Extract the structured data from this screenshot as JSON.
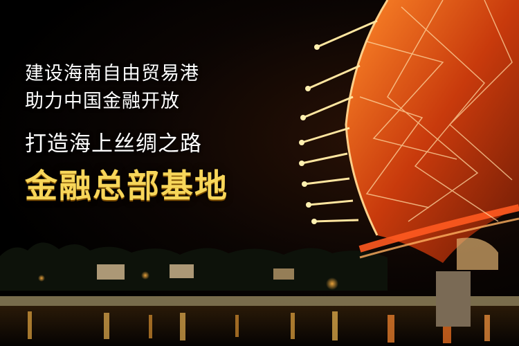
{
  "headline": {
    "line1": "建设海南自由贸易港",
    "line2": "助力中国金融开放",
    "line3": "打造海上丝绸之路",
    "line4": "金融总部基地"
  },
  "colors": {
    "highlight_text": "#f7d65a",
    "text": "#ffffff",
    "bridge_glow": "#ff6a1a",
    "water": "#1a1206"
  },
  "scene_description_icons": [
    "lit-bridge-illustration",
    "city-skyline-silhouette",
    "water-reflection"
  ]
}
